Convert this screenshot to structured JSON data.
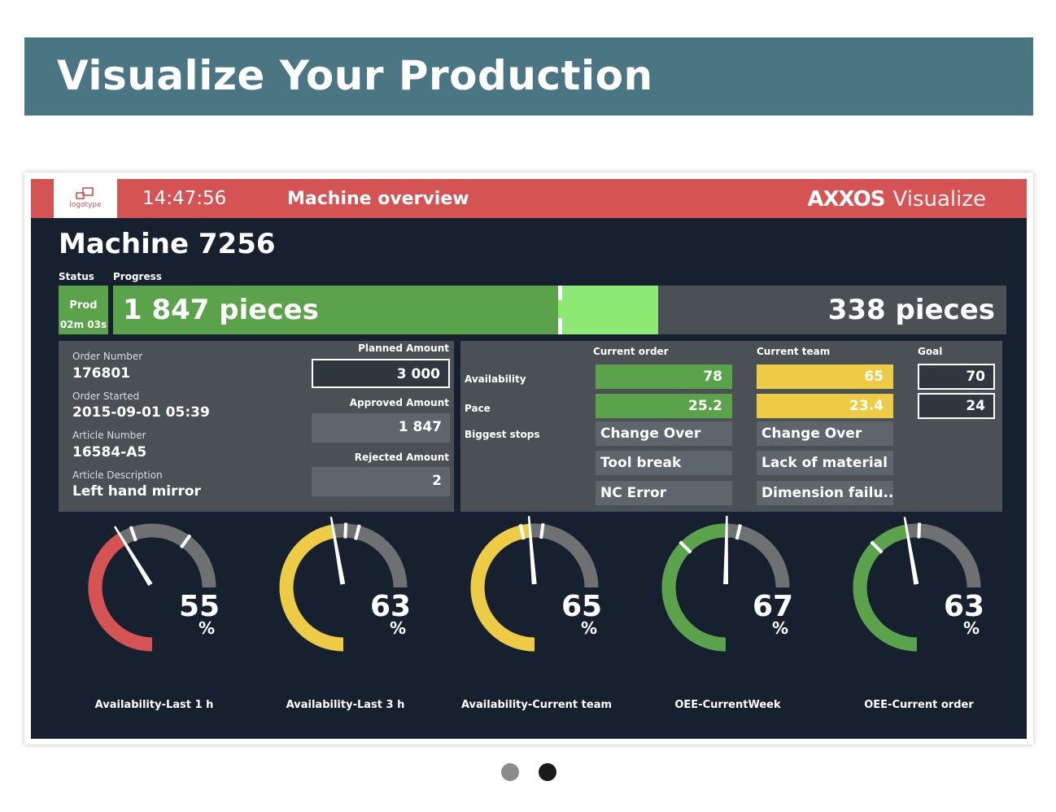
{
  "page": {
    "heading": "Visualize Your Production"
  },
  "dashboard": {
    "logo_text": "logotype",
    "clock": "14:47:56",
    "title": "Machine overview",
    "brand_strong": "AXXOS",
    "brand_light": "Visualize",
    "machine_name": "Machine 7256",
    "status_label": "Status",
    "progress_label": "Progress",
    "status": {
      "mode": "Prod",
      "time": "02m 03s"
    },
    "progress": {
      "done_text": "1 847 pieces",
      "remaining_text": "338 pieces",
      "done_fraction": 0.5,
      "current_fraction": 0.61
    },
    "order_info": [
      {
        "label": "Order Number",
        "value": "176801"
      },
      {
        "label": "Order Started",
        "value": "2015-09-01 05:39"
      },
      {
        "label": "Article Number",
        "value": "16584-A5"
      },
      {
        "label": "Article Description",
        "value": "Left hand mirror"
      }
    ],
    "amounts": {
      "planned_label": "Planned Amount",
      "planned": "3 000",
      "approved_label": "Approved Amount",
      "approved": "1 847",
      "rejected_label": "Rejected Amount",
      "rejected": "2"
    },
    "kpi": {
      "col_current_order": "Current order",
      "col_current_team": "Current team",
      "col_goal": "Goal",
      "row_availability": "Availability",
      "row_pace": "Pace",
      "row_stops": "Biggest stops",
      "availability": {
        "order": "78",
        "team": "65",
        "goal": "70"
      },
      "pace": {
        "order": "25.2",
        "team": "23.4",
        "goal": "24"
      },
      "stops_order": [
        "Change Over",
        "Tool break",
        "NC Error"
      ],
      "stops_team": [
        "Change Over",
        "Lack of material",
        "Dimension failu.."
      ]
    },
    "gauges": [
      {
        "value": 55,
        "value_text": "55",
        "unit": "%",
        "label": "Availability-Last 1 h",
        "color": "#d65353",
        "goal": 0.8
      },
      {
        "value": 63,
        "value_text": "63",
        "unit": "%",
        "label": "Availability-Last 3 h",
        "color": "#eecb45",
        "goal": 0.72
      },
      {
        "value": 65,
        "value_text": "65",
        "unit": "%",
        "label": "Availability-Current team",
        "color": "#eecb45",
        "goal": 0.62
      },
      {
        "value": 67,
        "value_text": "67",
        "unit": "%",
        "label": "OEE-CurrentWeek",
        "color": "#5aa34a",
        "goal": 0.5
      },
      {
        "value": 63,
        "value_text": "63",
        "unit": "%",
        "label": "OEE-Current order",
        "color": "#5aa34a",
        "goal": 0.5
      }
    ],
    "colors": {
      "red": "#d65353",
      "green": "#5aa34a",
      "yellow": "#eecb45",
      "gauge_track": "#6e7072"
    }
  },
  "carousel": {
    "active_index": 1,
    "count": 2
  }
}
